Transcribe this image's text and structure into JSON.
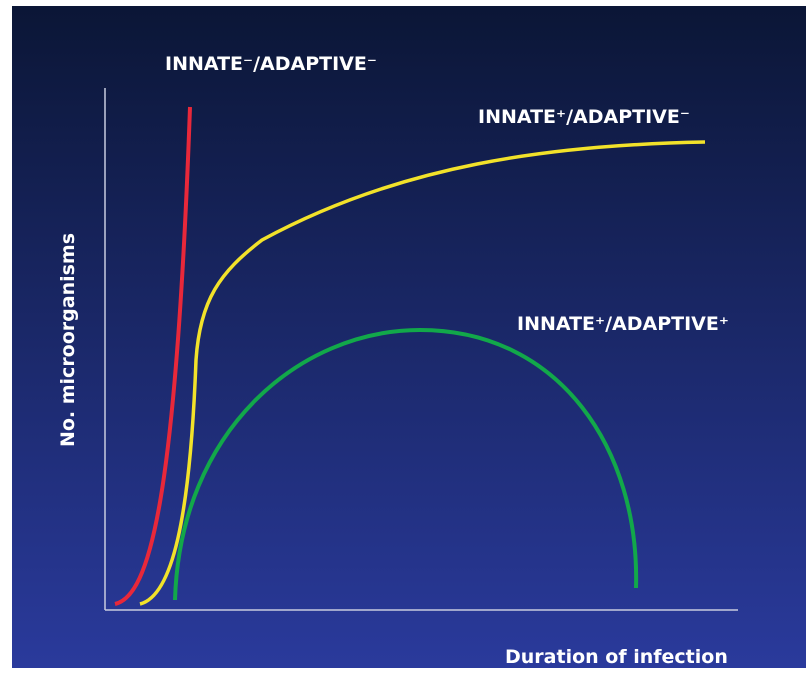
{
  "labels": {
    "innate_neg_adaptive_neg": "INNATE⁻/ADAPTIVE⁻",
    "innate_pos_adaptive_neg": "INNATE⁺/ADAPTIVE⁻",
    "innate_pos_adaptive_pos": "INNATE⁺/ADAPTIVE⁺"
  },
  "axes": {
    "y_label": "No. microorganisms",
    "x_label": "Duration of infection"
  }
}
